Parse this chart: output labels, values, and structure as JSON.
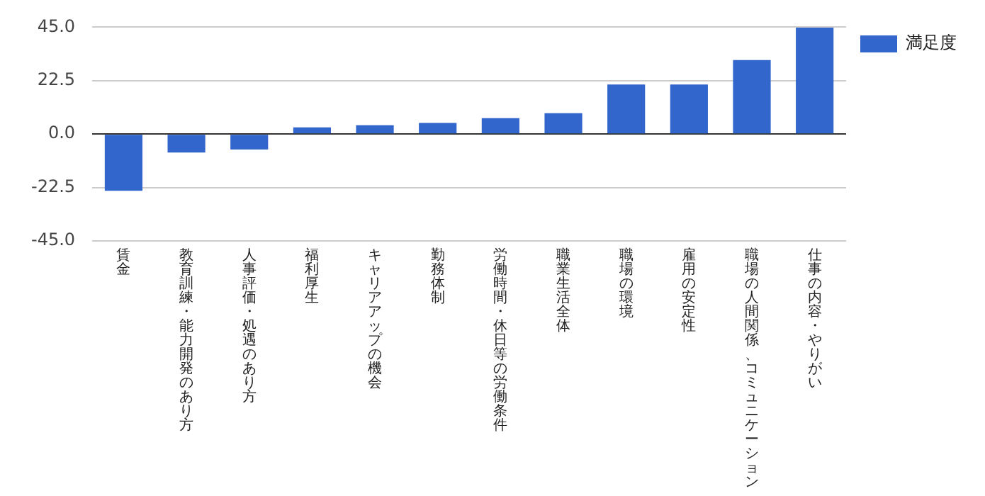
{
  "chart_data": {
    "type": "bar",
    "categories": [
      "賃金",
      "教育訓練・能力開発のあり方",
      "人事評価・処遇のあり方",
      "福利厚生",
      "キャリアアップの機会",
      "勤務体制",
      "労働時間・休日等の労働条件",
      "職業生活全体",
      "職場の環境",
      "雇用の安定性",
      "職場の人間関係、コミュニケーション",
      "仕事の内容・やりがい"
    ],
    "series": [
      {
        "name": "満足度",
        "color": "#3366cc",
        "values": [
          -23.9,
          -7.8,
          -6.5,
          2.8,
          3.7,
          4.7,
          6.7,
          8.8,
          20.9,
          20.9,
          31.2,
          44.8
        ]
      }
    ],
    "ylim": [
      -45,
      45
    ],
    "yticks": [
      {
        "value": -45,
        "label": "-45.0"
      },
      {
        "value": -22.5,
        "label": "-22.5"
      },
      {
        "value": 0,
        "label": "0.0"
      },
      {
        "value": 22.5,
        "label": "22.5"
      },
      {
        "value": 45,
        "label": "45.0"
      }
    ],
    "grid": "y",
    "legend": "top right"
  }
}
